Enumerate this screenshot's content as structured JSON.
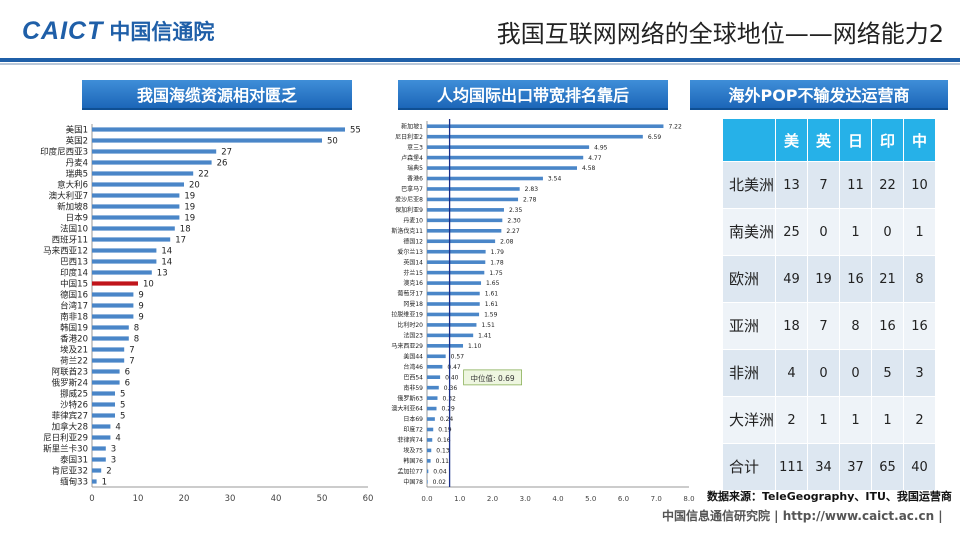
{
  "header": {
    "brand": "CAICT",
    "org": "中国信通院",
    "title": "我国互联网网络的全球地位——网络能力2"
  },
  "banners": {
    "left": "我国海缆资源相对匮乏",
    "middle": "人均国际出口带宽排名靠后",
    "right": "海外POP不输发达运营商"
  },
  "colors": {
    "bar": "#4a86c8",
    "highlight": "#c0151b",
    "table_header": "#26b1e8",
    "median_line": "#1a2f8a"
  },
  "chart_data": [
    {
      "type": "bar",
      "orientation": "horizontal",
      "categories": [
        "美国1",
        "英国2",
        "印度尼西亚3",
        "丹麦4",
        "瑞典5",
        "意大利6",
        "澳大利亚7",
        "新加坡8",
        "日本9",
        "法国10",
        "西班牙11",
        "马来西亚12",
        "巴西13",
        "印度14",
        "中国15",
        "德国16",
        "台湾17",
        "南非18",
        "韩国19",
        "香港20",
        "埃及21",
        "荷兰22",
        "阿联酋23",
        "俄罗斯24",
        "挪威25",
        "沙特26",
        "菲律宾27",
        "加拿大28",
        "尼日利亚29",
        "斯里兰卡30",
        "泰国31",
        "肯尼亚32",
        "缅甸33"
      ],
      "values": [
        55,
        50,
        27,
        26,
        22,
        20,
        19,
        19,
        19,
        18,
        17,
        14,
        14,
        13,
        10,
        9,
        9,
        9,
        8,
        8,
        7,
        7,
        6,
        6,
        5,
        5,
        5,
        4,
        4,
        3,
        3,
        2,
        1
      ],
      "highlight_category": "中国15",
      "xlim": [
        0,
        60
      ],
      "xticks": [
        0,
        10,
        20,
        30,
        40,
        50,
        60
      ]
    },
    {
      "type": "bar",
      "orientation": "horizontal",
      "categories": [
        "新加坡1",
        "尼日利亚2",
        "意三3",
        "卢森堡4",
        "瑞典5",
        "香港6",
        "巴拿马7",
        "爱沙尼亚8",
        "保加利亚9",
        "丹麦10",
        "斯洛伐克11",
        "德国12",
        "爱尔兰13",
        "英国14",
        "芬兰15",
        "澳克16",
        "葡萄牙17",
        "冈曼18",
        "拉脱维亚19",
        "比利时20",
        "法国23",
        "马来西亚29",
        "美国44",
        "台湾46",
        "巴西54",
        "南非59",
        "俄罗斯63",
        "澳大利亚64",
        "日本69",
        "印度72",
        "菲律宾74",
        "埃及75",
        "韩国76",
        "孟加拉77",
        "中国78"
      ],
      "values": [
        7.22,
        6.59,
        4.95,
        4.77,
        4.58,
        3.54,
        2.83,
        2.78,
        2.35,
        2.3,
        2.27,
        2.08,
        1.79,
        1.78,
        1.75,
        1.65,
        1.61,
        1.61,
        1.59,
        1.51,
        1.41,
        1.1,
        0.57,
        0.47,
        0.4,
        0.36,
        0.32,
        0.29,
        0.24,
        0.19,
        0.16,
        0.13,
        0.11,
        0.04,
        0.02
      ],
      "median": 0.69,
      "median_label": "中位值: 0.69",
      "xlim": [
        0,
        8
      ],
      "xticks": [
        "0.0",
        "1.0",
        "2.0",
        "3.0",
        "4.0",
        "5.0",
        "6.0",
        "7.0",
        "8.0"
      ]
    }
  ],
  "pop_table": {
    "columns": [
      "美",
      "英",
      "日",
      "印",
      "中"
    ],
    "rows": [
      {
        "region": "北美洲",
        "values": [
          "13",
          "7",
          "11",
          "22",
          "10"
        ]
      },
      {
        "region": "南美洲",
        "values": [
          "25",
          "0",
          "1",
          "0",
          "1"
        ]
      },
      {
        "region": "欧洲",
        "values": [
          "49",
          "19",
          "16",
          "21",
          "8"
        ]
      },
      {
        "region": "亚洲",
        "values": [
          "18",
          "7",
          "8",
          "16",
          "16"
        ]
      },
      {
        "region": "非洲",
        "values": [
          "4",
          "0",
          "0",
          "5",
          "3"
        ]
      },
      {
        "region": "大洋洲",
        "values": [
          "2",
          "1",
          "1",
          "1",
          "2"
        ]
      },
      {
        "region": "合计",
        "values": [
          "111",
          "34",
          "37",
          "65",
          "40"
        ]
      }
    ]
  },
  "source": "数据来源：TeleGeography、ITU、我国运营商",
  "footer": "中国信息通信研究院  |  http://www.caict.ac.cn  |"
}
